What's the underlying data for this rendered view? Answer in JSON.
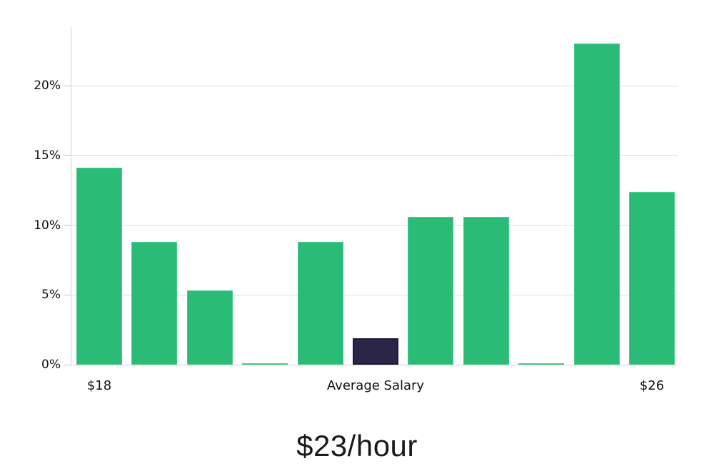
{
  "chart_data": {
    "type": "bar",
    "title": "$23/hour",
    "unit": "%",
    "values": [
      14.1,
      8.8,
      5.3,
      0.1,
      8.8,
      1.9,
      10.6,
      10.6,
      0.1,
      23.0,
      12.4
    ],
    "highlight_index": 5,
    "x_ticks": [
      {
        "index": 0,
        "label": "$18"
      },
      {
        "index": 5,
        "label": "Average Salary"
      },
      {
        "index": 10,
        "label": "$26"
      }
    ],
    "y_ticks": [
      {
        "value": 0,
        "label": "0%"
      },
      {
        "value": 5,
        "label": "5%"
      },
      {
        "value": 10,
        "label": "10%"
      },
      {
        "value": 15,
        "label": "15%"
      },
      {
        "value": 20,
        "label": "20%"
      }
    ],
    "ylim": [
      0,
      24.2
    ],
    "grid": true,
    "legend": "none",
    "bar_color": "#2abb76",
    "bar_border_color": "#46cd8d",
    "highlight_color": "#2b2647",
    "highlight_border_color": "#1c1834",
    "gridline_color": "#dedede",
    "baseline_color": "#cfcfcf"
  }
}
